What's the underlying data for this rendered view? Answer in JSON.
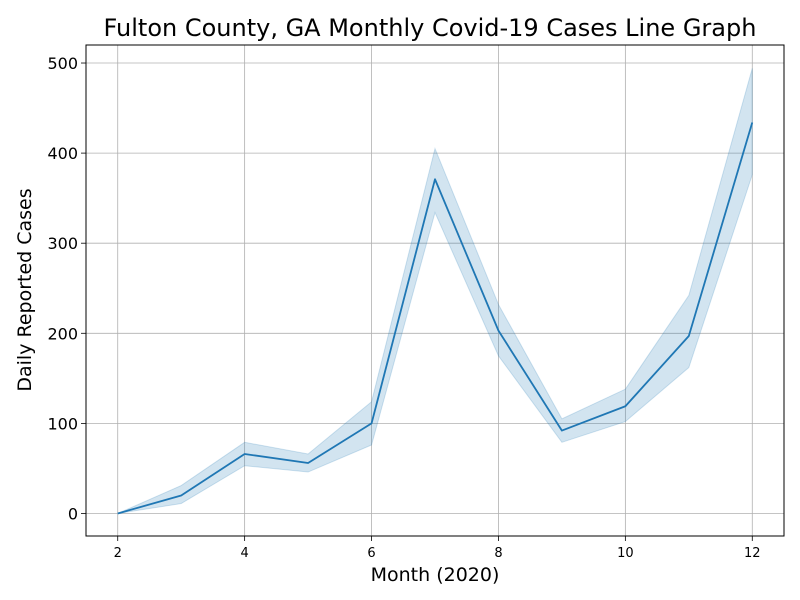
{
  "chart_data": {
    "type": "line",
    "title": "Fulton County, GA Monthly Covid-19 Cases Line Graph",
    "xlabel": "Month (2020)",
    "ylabel": "Daily Reported Cases",
    "xlim": [
      1.5,
      12.5
    ],
    "ylim": [
      -25,
      520
    ],
    "x_ticks": [
      2,
      4,
      6,
      8,
      10,
      12
    ],
    "y_ticks": [
      0,
      100,
      200,
      300,
      400,
      500
    ],
    "grid": true,
    "series": [
      {
        "x": [
          2,
          3,
          4,
          5,
          6,
          7,
          8,
          9,
          10,
          11,
          12
        ],
        "values": [
          0,
          20,
          66,
          56,
          100,
          371,
          203,
          92,
          119,
          197,
          434
        ],
        "ci_lower": [
          0,
          11,
          53,
          46,
          76,
          334,
          175,
          79,
          102,
          162,
          376
        ],
        "ci_upper": [
          0,
          31,
          79,
          66,
          124,
          405,
          232,
          105,
          138,
          242,
          494
        ],
        "color": "#1f77b4"
      }
    ]
  }
}
